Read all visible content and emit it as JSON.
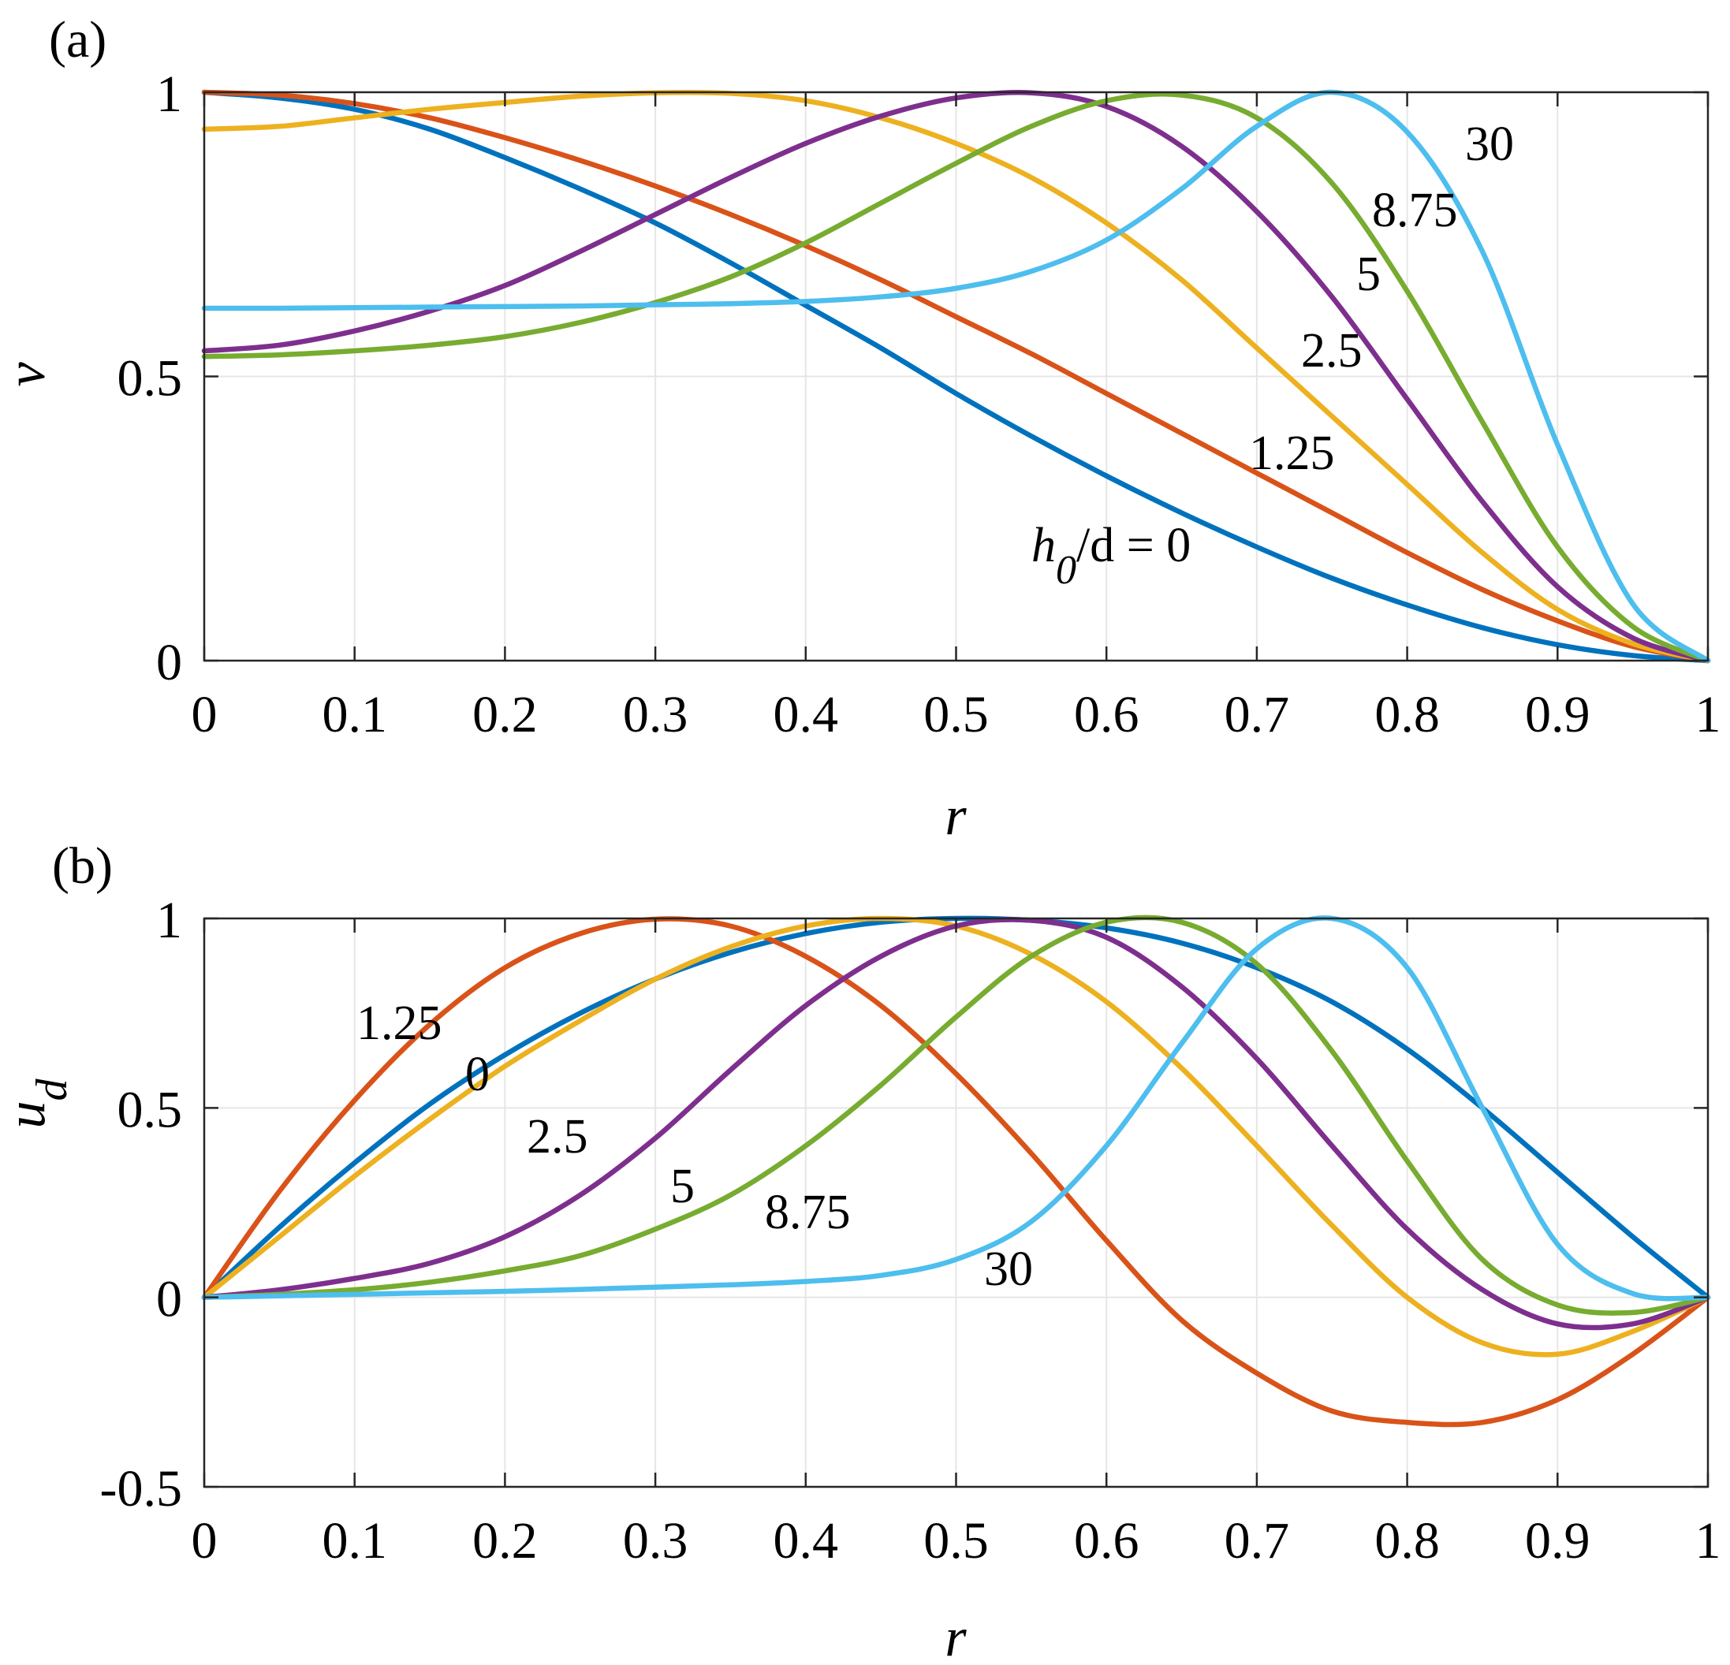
{
  "figure": {
    "colors": [
      "#0072BD",
      "#D95319",
      "#EDB120",
      "#7E2F8E",
      "#77AC30",
      "#4DBEEE"
    ]
  },
  "chart_data": [
    {
      "type": "line",
      "panel_label": "(a)",
      "title": "",
      "xlabel": "r",
      "ylabel": "v",
      "xlim": [
        0,
        1
      ],
      "ylim": [
        0,
        1
      ],
      "xticks": [
        0,
        0.1,
        0.2,
        0.3,
        0.4,
        0.5,
        0.6,
        0.7,
        0.8,
        0.9,
        1
      ],
      "xtick_labels": [
        "0",
        "0.1",
        "0.2",
        "0.3",
        "0.4",
        "0.5",
        "0.6",
        "0.7",
        "0.8",
        "0.9",
        "1"
      ],
      "yticks": [
        0,
        0.5,
        1
      ],
      "ytick_labels": [
        "0",
        "0.5",
        "1"
      ],
      "grid": true,
      "legend_name": "h0/d",
      "annotation": {
        "main": "h",
        "sub": "0",
        "rest": "/d = 0"
      },
      "series": [
        {
          "name": "0",
          "label": "",
          "color": "#0072BD",
          "x": [
            0,
            0.05,
            0.1,
            0.15,
            0.2,
            0.25,
            0.3,
            0.35,
            0.4,
            0.45,
            0.5,
            0.55,
            0.6,
            0.65,
            0.7,
            0.75,
            0.8,
            0.85,
            0.9,
            0.95,
            1
          ],
          "y": [
            1.0,
            0.99,
            0.97,
            0.935,
            0.885,
            0.83,
            0.77,
            0.7,
            0.625,
            0.55,
            0.47,
            0.395,
            0.325,
            0.26,
            0.2,
            0.145,
            0.098,
            0.058,
            0.028,
            0.009,
            0.0
          ]
        },
        {
          "name": "1.25",
          "label": "1.25",
          "color": "#D95319",
          "x": [
            0,
            0.05,
            0.1,
            0.15,
            0.2,
            0.25,
            0.3,
            0.35,
            0.4,
            0.45,
            0.5,
            0.55,
            0.6,
            0.65,
            0.7,
            0.75,
            0.8,
            0.85,
            0.9,
            0.95,
            1
          ],
          "y": [
            1.0,
            0.995,
            0.98,
            0.955,
            0.92,
            0.88,
            0.835,
            0.785,
            0.73,
            0.67,
            0.605,
            0.54,
            0.47,
            0.4,
            0.33,
            0.26,
            0.19,
            0.125,
            0.07,
            0.025,
            0.0
          ]
        },
        {
          "name": "2.5",
          "label": "2.5",
          "color": "#EDB120",
          "x": [
            0,
            0.05,
            0.1,
            0.15,
            0.2,
            0.25,
            0.3,
            0.35,
            0.4,
            0.45,
            0.5,
            0.55,
            0.6,
            0.65,
            0.7,
            0.75,
            0.8,
            0.85,
            0.9,
            0.95,
            1
          ],
          "y": [
            0.935,
            0.94,
            0.955,
            0.97,
            0.982,
            0.993,
            0.999,
            0.998,
            0.985,
            0.955,
            0.91,
            0.85,
            0.77,
            0.67,
            0.55,
            0.43,
            0.31,
            0.19,
            0.09,
            0.03,
            0.0
          ]
        },
        {
          "name": "5",
          "label": "5",
          "color": "#7E2F8E",
          "x": [
            0,
            0.05,
            0.1,
            0.15,
            0.2,
            0.25,
            0.3,
            0.35,
            0.4,
            0.45,
            0.5,
            0.55,
            0.6,
            0.65,
            0.7,
            0.75,
            0.8,
            0.85,
            0.9,
            0.95,
            1
          ],
          "y": [
            0.545,
            0.555,
            0.58,
            0.615,
            0.66,
            0.72,
            0.785,
            0.85,
            0.91,
            0.958,
            0.99,
            0.999,
            0.975,
            0.905,
            0.79,
            0.64,
            0.46,
            0.28,
            0.13,
            0.04,
            0.0
          ]
        },
        {
          "name": "8.75",
          "label": "8.75",
          "color": "#77AC30",
          "x": [
            0,
            0.05,
            0.1,
            0.15,
            0.2,
            0.25,
            0.3,
            0.35,
            0.4,
            0.45,
            0.5,
            0.55,
            0.6,
            0.65,
            0.7,
            0.75,
            0.8,
            0.85,
            0.9,
            0.95,
            1
          ],
          "y": [
            0.535,
            0.538,
            0.545,
            0.555,
            0.57,
            0.595,
            0.63,
            0.675,
            0.735,
            0.805,
            0.875,
            0.94,
            0.985,
            0.995,
            0.955,
            0.84,
            0.65,
            0.42,
            0.2,
            0.06,
            0.0
          ]
        },
        {
          "name": "30",
          "label": "30",
          "color": "#4DBEEE",
          "x": [
            0,
            0.05,
            0.1,
            0.15,
            0.2,
            0.25,
            0.3,
            0.35,
            0.4,
            0.45,
            0.5,
            0.55,
            0.6,
            0.65,
            0.7,
            0.75,
            0.8,
            0.85,
            0.9,
            0.95,
            1
          ],
          "y": [
            0.62,
            0.62,
            0.621,
            0.622,
            0.623,
            0.624,
            0.626,
            0.628,
            0.632,
            0.64,
            0.655,
            0.685,
            0.74,
            0.83,
            0.94,
            1.0,
            0.93,
            0.72,
            0.38,
            0.1,
            0.0
          ]
        }
      ]
    },
    {
      "type": "line",
      "panel_label": "(b)",
      "title": "",
      "xlabel": "r",
      "ylabel": "u",
      "ylabel_sub": "d",
      "xlim": [
        0,
        1
      ],
      "ylim": [
        -0.5,
        1
      ],
      "xticks": [
        0,
        0.1,
        0.2,
        0.3,
        0.4,
        0.5,
        0.6,
        0.7,
        0.8,
        0.9,
        1
      ],
      "xtick_labels": [
        "0",
        "0.1",
        "0.2",
        "0.3",
        "0.4",
        "0.5",
        "0.6",
        "0.7",
        "0.8",
        "0.9",
        "1"
      ],
      "yticks": [
        -0.5,
        0,
        0.5,
        1
      ],
      "ytick_labels": [
        "-0.5",
        "0",
        "0.5",
        "1"
      ],
      "grid": true,
      "series": [
        {
          "name": "0",
          "label": "0",
          "color": "#0072BD",
          "x": [
            0,
            0.05,
            0.1,
            0.15,
            0.2,
            0.25,
            0.3,
            0.35,
            0.4,
            0.45,
            0.5,
            0.55,
            0.6,
            0.65,
            0.7,
            0.75,
            0.8,
            0.85,
            0.9,
            0.95,
            1
          ],
          "y": [
            0.0,
            0.185,
            0.355,
            0.51,
            0.64,
            0.75,
            0.84,
            0.91,
            0.96,
            0.99,
            1.0,
            0.995,
            0.975,
            0.935,
            0.87,
            0.78,
            0.655,
            0.5,
            0.33,
            0.16,
            0.0
          ]
        },
        {
          "name": "1.25",
          "label": "1.25",
          "color": "#D95319",
          "x": [
            0,
            0.05,
            0.1,
            0.15,
            0.2,
            0.25,
            0.3,
            0.35,
            0.4,
            0.45,
            0.5,
            0.55,
            0.6,
            0.65,
            0.7,
            0.75,
            0.8,
            0.85,
            0.9,
            0.95,
            1
          ],
          "y": [
            0.0,
            0.28,
            0.52,
            0.72,
            0.87,
            0.96,
            0.998,
            0.98,
            0.9,
            0.77,
            0.59,
            0.38,
            0.15,
            -0.06,
            -0.2,
            -0.3,
            -0.33,
            -0.33,
            -0.27,
            -0.15,
            0.0
          ]
        },
        {
          "name": "2.5",
          "label": "2.5",
          "color": "#EDB120",
          "x": [
            0,
            0.05,
            0.1,
            0.15,
            0.2,
            0.25,
            0.3,
            0.35,
            0.4,
            0.45,
            0.5,
            0.55,
            0.6,
            0.65,
            0.7,
            0.75,
            0.8,
            0.85,
            0.9,
            0.95,
            1
          ],
          "y": [
            0.0,
            0.16,
            0.32,
            0.47,
            0.61,
            0.73,
            0.84,
            0.925,
            0.98,
            1.0,
            0.98,
            0.905,
            0.78,
            0.605,
            0.4,
            0.19,
            0.0,
            -0.12,
            -0.15,
            -0.09,
            0.0
          ]
        },
        {
          "name": "5",
          "label": "5",
          "color": "#7E2F8E",
          "x": [
            0,
            0.05,
            0.1,
            0.15,
            0.2,
            0.25,
            0.3,
            0.35,
            0.4,
            0.45,
            0.5,
            0.55,
            0.6,
            0.65,
            0.7,
            0.75,
            0.8,
            0.85,
            0.9,
            0.95,
            1
          ],
          "y": [
            0.0,
            0.02,
            0.05,
            0.09,
            0.16,
            0.27,
            0.42,
            0.6,
            0.77,
            0.9,
            0.98,
            0.995,
            0.95,
            0.82,
            0.63,
            0.4,
            0.18,
            0.02,
            -0.07,
            -0.07,
            0.0
          ]
        },
        {
          "name": "8.75",
          "label": "8.75",
          "color": "#77AC30",
          "x": [
            0,
            0.05,
            0.1,
            0.15,
            0.2,
            0.25,
            0.3,
            0.35,
            0.4,
            0.45,
            0.5,
            0.55,
            0.6,
            0.65,
            0.7,
            0.75,
            0.8,
            0.85,
            0.9,
            0.95,
            1
          ],
          "y": [
            0.0,
            0.008,
            0.02,
            0.04,
            0.07,
            0.11,
            0.18,
            0.27,
            0.4,
            0.56,
            0.74,
            0.9,
            0.99,
            0.99,
            0.88,
            0.65,
            0.36,
            0.1,
            -0.02,
            -0.04,
            0.0
          ]
        },
        {
          "name": "30",
          "label": "30",
          "color": "#4DBEEE",
          "x": [
            0,
            0.05,
            0.1,
            0.15,
            0.2,
            0.25,
            0.3,
            0.35,
            0.4,
            0.45,
            0.5,
            0.55,
            0.6,
            0.65,
            0.7,
            0.75,
            0.8,
            0.85,
            0.9,
            0.95,
            1
          ],
          "y": [
            0.0,
            0.004,
            0.008,
            0.012,
            0.016,
            0.021,
            0.027,
            0.033,
            0.042,
            0.058,
            0.1,
            0.2,
            0.4,
            0.67,
            0.92,
            1.0,
            0.87,
            0.5,
            0.14,
            0.01,
            0.0
          ]
        }
      ]
    }
  ]
}
